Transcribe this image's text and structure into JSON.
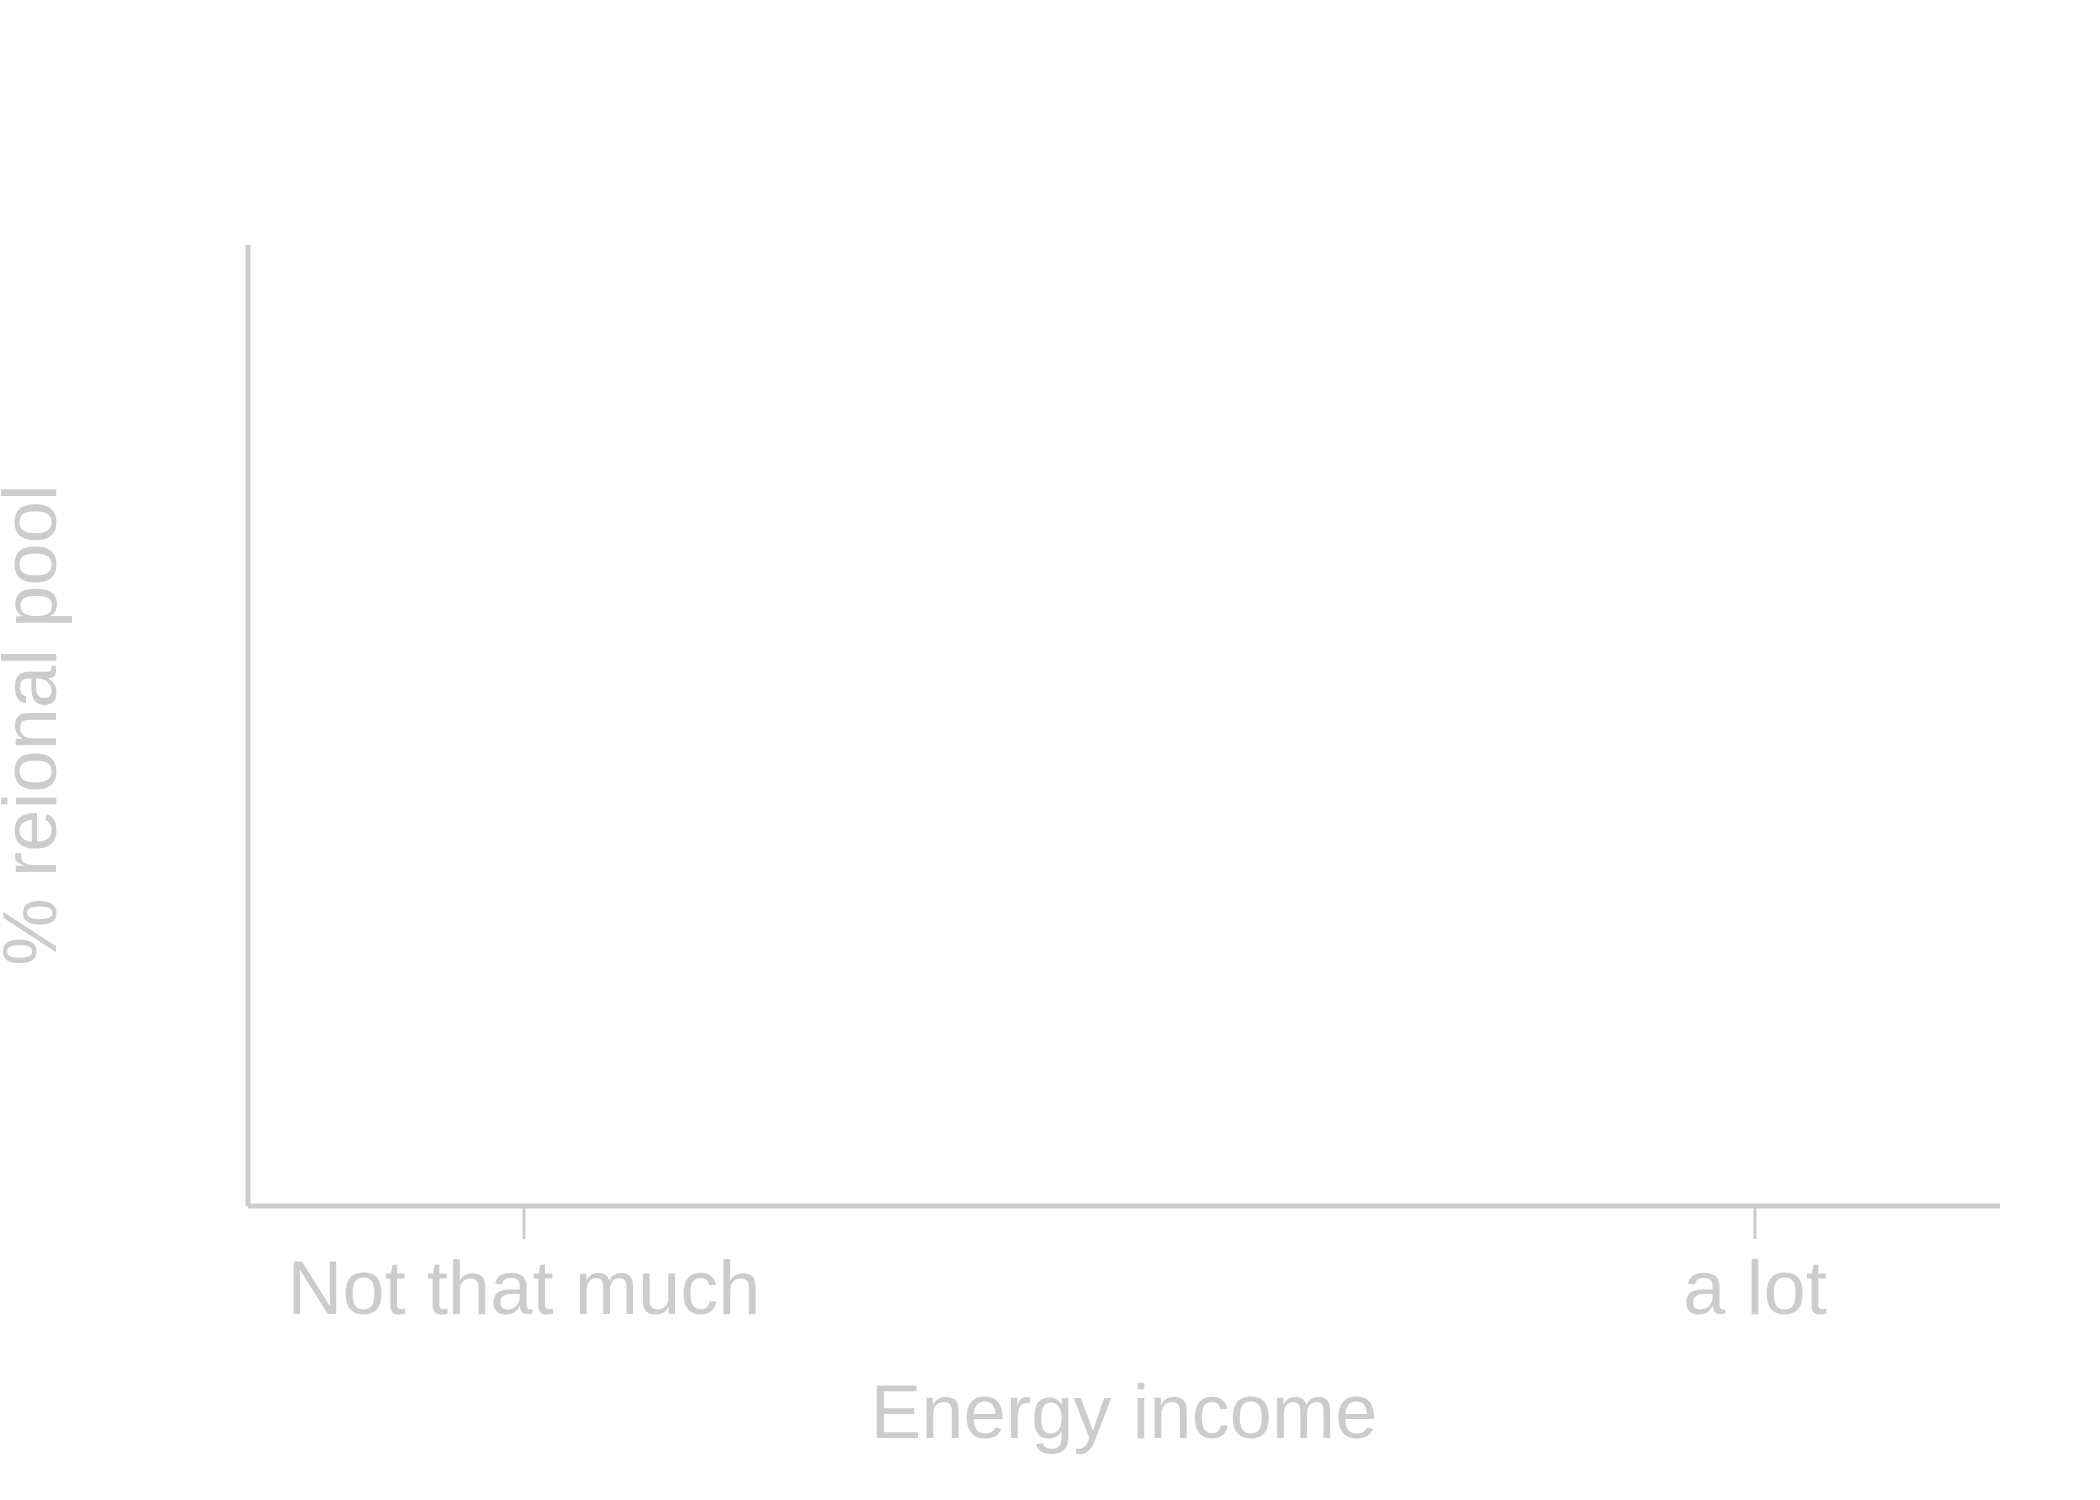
{
  "chart_data": {
    "type": "bar",
    "title": "",
    "xlabel": "Energy income",
    "ylabel": "% reional pool",
    "categories": [
      "Not that much",
      "a lot"
    ],
    "series": [],
    "grid": false,
    "legend": "none"
  },
  "colors": {
    "axis": "#cccccc",
    "background": "#ffffff"
  }
}
